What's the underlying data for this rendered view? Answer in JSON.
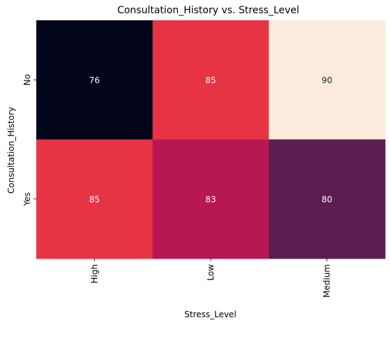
{
  "chart_data": {
    "type": "heatmap",
    "title": "Consultation_History vs. Stress_Level",
    "xlabel": "Stress_Level",
    "ylabel": "Consultation_History",
    "x_categories": [
      "High",
      "Low",
      "Medium"
    ],
    "y_categories": [
      "No",
      "Yes"
    ],
    "values": [
      [
        76,
        85,
        90
      ],
      [
        85,
        83,
        80
      ]
    ],
    "color_scale": "rocket",
    "vmin": 76,
    "vmax": 90,
    "colorbar": false,
    "annotations": true
  }
}
